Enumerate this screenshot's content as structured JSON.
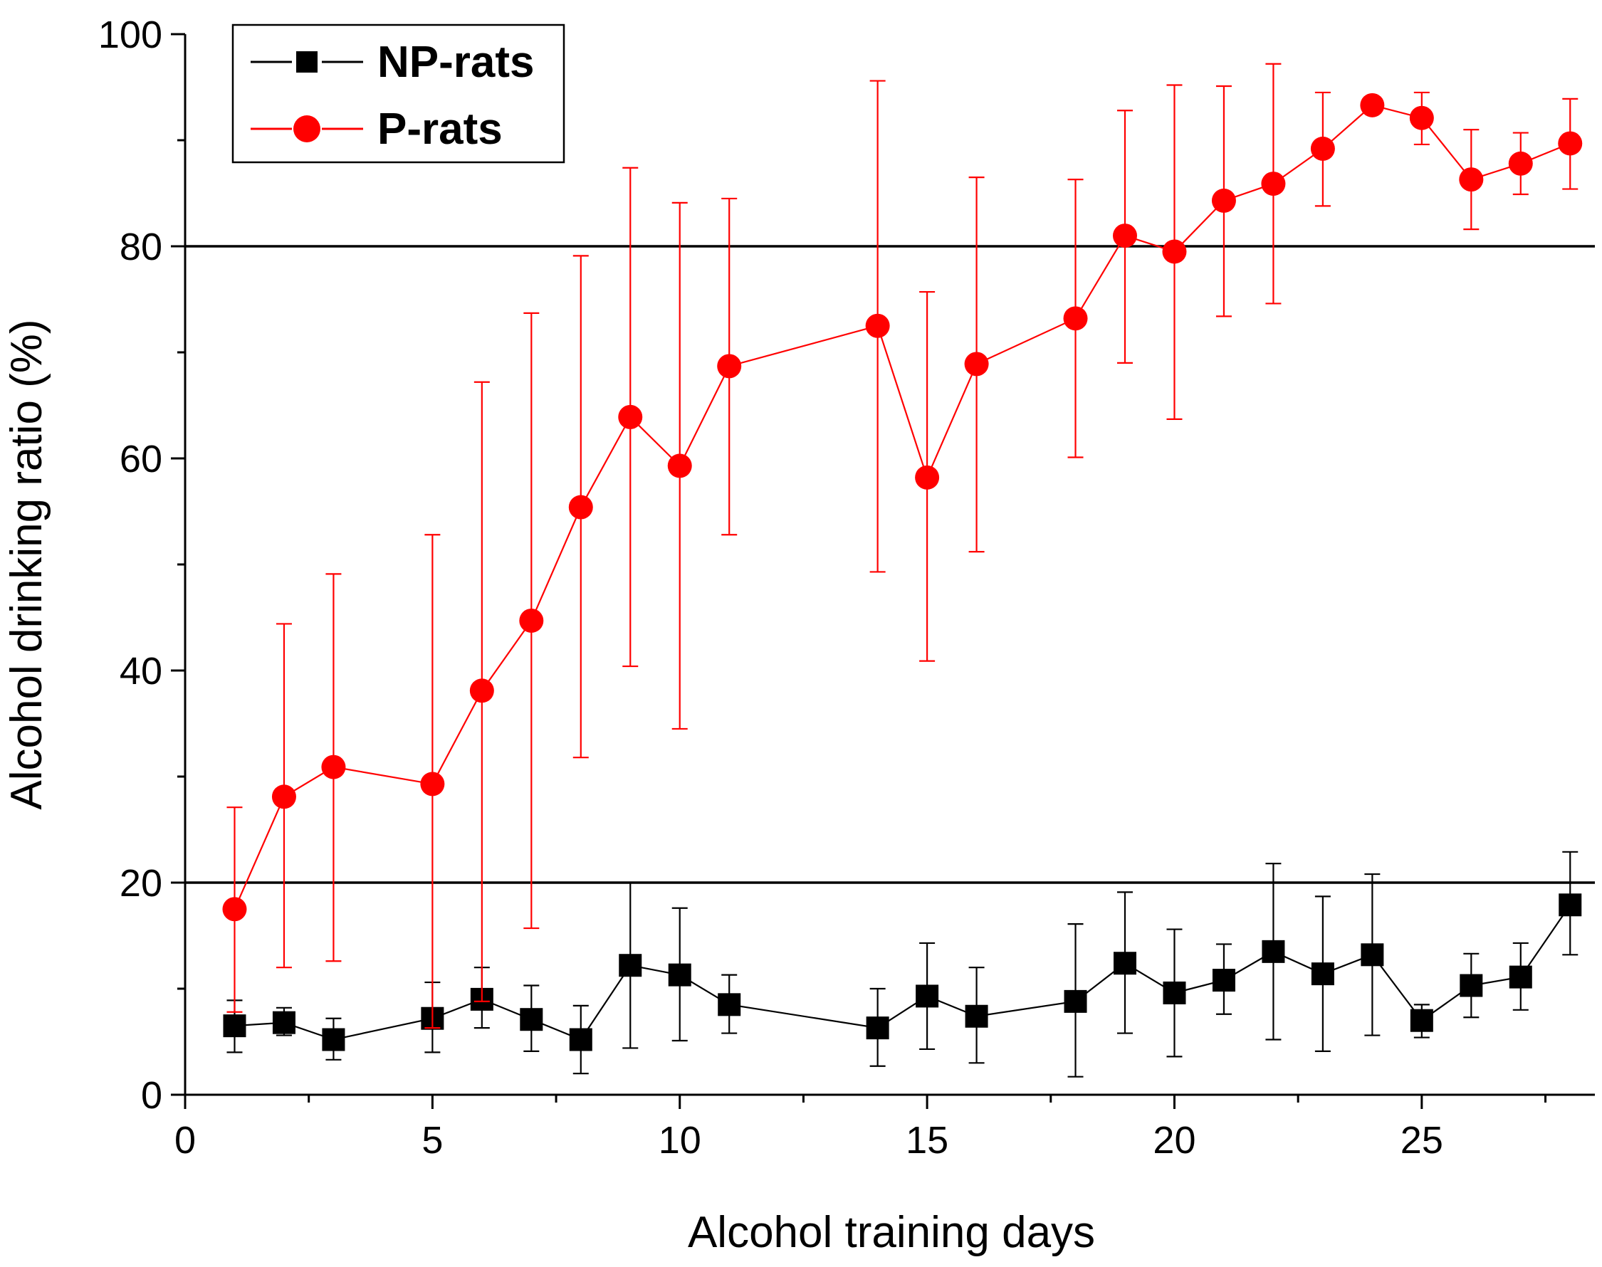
{
  "chart_data": {
    "type": "line",
    "title": "",
    "xlabel": "Alcohol training days",
    "ylabel": "Alcohol drinking ratio (%)",
    "xlim": [
      0,
      28.5
    ],
    "ylim": [
      0,
      100
    ],
    "x_ticks": [
      0,
      5,
      10,
      15,
      20,
      25
    ],
    "x_tick_labels": [
      "0",
      "5",
      "10",
      "15",
      "20",
      "25"
    ],
    "y_ticks": [
      0,
      20,
      40,
      60,
      80,
      100
    ],
    "y_tick_labels": [
      "0",
      "20",
      "40",
      "60",
      "80",
      "100"
    ],
    "reference_lines": [
      20,
      80
    ],
    "grid": false,
    "legend_position": "top-left",
    "series": [
      {
        "name": "NP-rats",
        "color": "#000000",
        "marker": "square",
        "x": [
          1,
          2,
          3,
          5,
          6,
          7,
          8,
          9,
          10,
          11,
          14,
          15,
          16,
          18,
          19,
          20,
          21,
          22,
          23,
          24,
          25,
          26,
          27,
          28
        ],
        "values": [
          6.5,
          6.8,
          5.2,
          7.2,
          9.0,
          7.1,
          5.2,
          12.2,
          11.3,
          8.5,
          6.3,
          9.3,
          7.4,
          8.8,
          12.4,
          9.6,
          10.8,
          13.5,
          11.4,
          13.2,
          7.0,
          10.3,
          11.1,
          17.9
        ],
        "err_low": [
          4.0,
          5.6,
          3.3,
          4.0,
          6.3,
          4.1,
          2.0,
          4.4,
          5.1,
          5.8,
          2.7,
          4.3,
          3.0,
          1.7,
          5.8,
          3.6,
          7.6,
          5.2,
          4.1,
          5.6,
          5.4,
          7.3,
          8.0,
          13.2
        ],
        "err_high": [
          8.9,
          8.2,
          7.2,
          10.6,
          12.0,
          10.3,
          8.4,
          20.0,
          17.6,
          11.3,
          10.0,
          14.3,
          12.0,
          16.1,
          19.1,
          15.6,
          14.2,
          21.8,
          18.7,
          20.8,
          8.5,
          13.3,
          14.3,
          22.9
        ]
      },
      {
        "name": "P-rats",
        "color": "#ff0000",
        "marker": "circle",
        "x": [
          1,
          2,
          3,
          5,
          6,
          7,
          8,
          9,
          10,
          11,
          14,
          15,
          16,
          18,
          19,
          20,
          21,
          22,
          23,
          24,
          25,
          26,
          27,
          28
        ],
        "values": [
          17.5,
          28.1,
          30.9,
          29.3,
          38.1,
          44.7,
          55.4,
          63.9,
          59.3,
          68.7,
          72.5,
          58.2,
          68.9,
          73.2,
          81.0,
          79.5,
          84.3,
          85.9,
          89.2,
          93.3,
          92.1,
          86.3,
          87.8,
          89.7
        ],
        "err_low": [
          7.8,
          12.0,
          12.6,
          6.3,
          8.8,
          15.7,
          31.8,
          40.4,
          34.5,
          52.8,
          49.3,
          40.9,
          51.2,
          60.1,
          69.0,
          63.7,
          73.4,
          74.6,
          83.8,
          93.3,
          89.6,
          81.6,
          84.9,
          85.4
        ],
        "err_high": [
          27.1,
          44.4,
          49.1,
          52.8,
          67.2,
          73.7,
          79.1,
          87.4,
          84.1,
          84.5,
          95.6,
          75.7,
          86.5,
          86.3,
          92.8,
          95.2,
          95.1,
          97.2,
          94.5,
          93.3,
          94.5,
          91.0,
          90.7,
          93.9
        ]
      }
    ]
  }
}
